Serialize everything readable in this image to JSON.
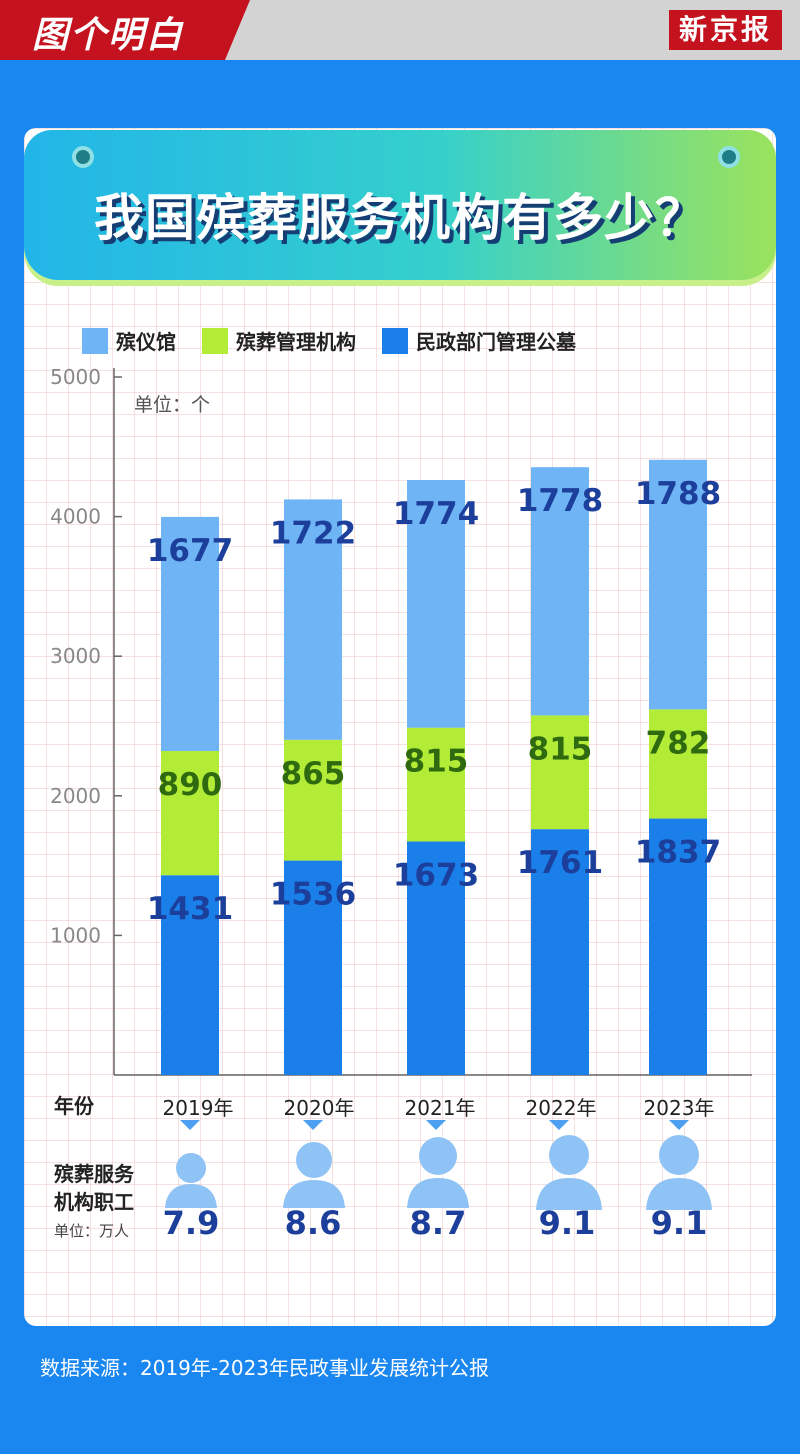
{
  "header": {
    "brand": "图个明白",
    "newspaper": "新京报"
  },
  "title": "我国殡葬服务机构有多少？",
  "colors": {
    "funeral_homes": "#6fb4f5",
    "funeral_management": "#b2ec36",
    "cemeteries": "#1a7fe8",
    "bar_label": "#1c3f9b",
    "green_label": "#2f6a11"
  },
  "legend": [
    {
      "label": "殡仪馆",
      "color": "#6fb4f5"
    },
    {
      "label": "殡葬管理机构",
      "color": "#b2ec36"
    },
    {
      "label": "民政部门管理公墓",
      "color": "#1a7fe8"
    }
  ],
  "unit_label": "单位：个",
  "year_row_label": "年份",
  "staff": {
    "label_line1": "殡葬服务",
    "label_line2": "机构职工",
    "unit": "单位：万人",
    "values": [
      "7.9",
      "8.6",
      "8.7",
      "9.1",
      "9.1"
    ],
    "icon": "person-icon"
  },
  "chart_data": {
    "type": "bar",
    "stacked": true,
    "categories": [
      "2019年",
      "2020年",
      "2021年",
      "2022年",
      "2023年"
    ],
    "series": [
      {
        "name": "民政部门管理公墓",
        "values": [
          1431,
          1536,
          1673,
          1761,
          1837
        ]
      },
      {
        "name": "殡葬管理机构",
        "values": [
          890,
          865,
          815,
          815,
          782
        ]
      },
      {
        "name": "殡仪馆",
        "values": [
          1677,
          1722,
          1774,
          1778,
          1788
        ]
      }
    ],
    "yticks": [
      "1000",
      "2000",
      "3000",
      "4000",
      "5000"
    ],
    "ylim": [
      0,
      5000
    ],
    "grid": false,
    "legend_position": "top"
  },
  "source": "数据来源：2019年-2023年民政事业发展统计公报"
}
